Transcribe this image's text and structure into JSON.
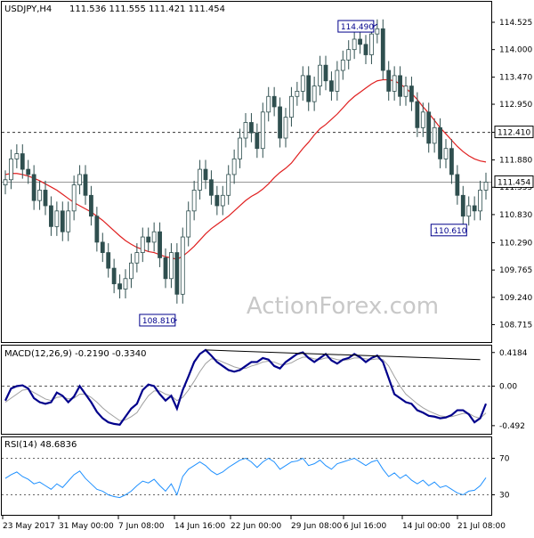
{
  "header": {
    "symbol": "USDJPY,H4",
    "ohlc": "111.536 111.555 111.421 111.454"
  },
  "watermark": "ActionForex.com",
  "colors": {
    "candle": "#2f4f4f",
    "ma": "#e02020",
    "macd": "#00008b",
    "signal": "#a0a0a0",
    "rsi": "#1e90ff",
    "label_border": "#00008b",
    "current_price_bg": "#ffffff"
  },
  "chart_data": [
    {
      "type": "candlestick",
      "panel": "price",
      "ylim": [
        108.45,
        114.85
      ],
      "y_ticks": [
        "114.525",
        "114.000",
        "113.470",
        "112.950",
        "112.410",
        "111.880",
        "111.355",
        "110.830",
        "110.290",
        "109.765",
        "109.240",
        "108.715"
      ],
      "y_tick_values": [
        114.525,
        114.0,
        113.47,
        112.95,
        112.41,
        111.88,
        111.355,
        110.83,
        110.29,
        109.765,
        109.24,
        108.715
      ],
      "x_tick_labels": [
        "23 May 2017",
        "31 May 00:00",
        "7 Jun 08:00",
        "14 Jun 16:00",
        "22 Jun 00:00",
        "29 Jun 08:00",
        "6 Jul 16:00",
        "14 Jul 00:00",
        "21 Jul 08:00"
      ],
      "horizontal_line": {
        "value": 112.41,
        "label": "112.410"
      },
      "current_price": {
        "value": 111.454,
        "label": "111.454"
      },
      "annotations": [
        {
          "label": "114.490",
          "value": 114.49,
          "at_close_index": 65
        },
        {
          "label": "108.810",
          "value": 108.81,
          "at_close_index": 30
        },
        {
          "label": "110.610",
          "value": 110.61,
          "at_close_index": 80
        }
      ],
      "closes": [
        111.5,
        111.9,
        112.0,
        111.7,
        111.6,
        111.1,
        111.3,
        111.0,
        110.6,
        110.9,
        110.5,
        110.9,
        111.4,
        111.6,
        111.2,
        110.8,
        110.3,
        110.1,
        109.8,
        109.5,
        109.4,
        109.6,
        109.9,
        110.1,
        110.4,
        110.3,
        110.5,
        110.0,
        109.6,
        110.1,
        109.3,
        110.4,
        110.9,
        111.3,
        111.7,
        111.5,
        111.2,
        111.0,
        111.2,
        111.6,
        111.9,
        112.3,
        112.6,
        112.4,
        112.1,
        112.8,
        113.1,
        112.9,
        112.3,
        112.7,
        113.1,
        113.2,
        113.5,
        113.0,
        113.3,
        113.7,
        113.4,
        113.2,
        113.6,
        113.8,
        114.0,
        114.2,
        114.1,
        113.9,
        114.3,
        114.4,
        113.6,
        113.2,
        113.5,
        113.1,
        113.3,
        113.0,
        112.5,
        112.8,
        112.2,
        112.5,
        111.9,
        112.1,
        111.6,
        111.2,
        110.8,
        111.0,
        110.9,
        111.3,
        111.454
      ],
      "ma": [
        111.6,
        111.62,
        111.62,
        111.6,
        111.57,
        111.53,
        111.48,
        111.42,
        111.36,
        111.3,
        111.22,
        111.14,
        111.06,
        111.0,
        110.94,
        110.88,
        110.8,
        110.72,
        110.62,
        110.52,
        110.42,
        110.33,
        110.26,
        110.2,
        110.16,
        110.12,
        110.1,
        110.06,
        110.02,
        110.0,
        109.97,
        110.03,
        110.12,
        110.22,
        110.34,
        110.46,
        110.56,
        110.64,
        110.72,
        110.8,
        110.9,
        111.0,
        111.1,
        111.18,
        111.24,
        111.32,
        111.42,
        111.54,
        111.64,
        111.72,
        111.82,
        111.96,
        112.1,
        112.22,
        112.36,
        112.48,
        112.56,
        112.66,
        112.76,
        112.88,
        113.0,
        113.1,
        113.18,
        113.26,
        113.34,
        113.4,
        113.42,
        113.42,
        113.4,
        113.34,
        113.26,
        113.16,
        113.04,
        112.9,
        112.78,
        112.64,
        112.5,
        112.38,
        112.26,
        112.14,
        112.04,
        111.96,
        111.9,
        111.86,
        111.84
      ]
    },
    {
      "type": "line",
      "panel": "macd",
      "name": "MACD(12,26,9)",
      "legend": "MACD(12,26,9) -0.2190 -0.3340",
      "ylim": [
        -0.56,
        0.46
      ],
      "y_ticks": [
        "0.4184",
        "0.00",
        "-0.492"
      ],
      "y_tick_values": [
        0.4184,
        0.0,
        -0.492
      ],
      "macd": [
        -0.18,
        -0.03,
        0.0,
        0.01,
        -0.03,
        -0.15,
        -0.2,
        -0.22,
        -0.2,
        -0.08,
        -0.12,
        -0.2,
        -0.13,
        0.0,
        -0.1,
        -0.2,
        -0.32,
        -0.4,
        -0.45,
        -0.47,
        -0.48,
        -0.38,
        -0.28,
        -0.22,
        -0.05,
        0.02,
        0.0,
        -0.1,
        -0.18,
        -0.12,
        -0.28,
        -0.05,
        0.12,
        0.3,
        0.4,
        0.45,
        0.38,
        0.3,
        0.25,
        0.2,
        0.18,
        0.2,
        0.25,
        0.3,
        0.3,
        0.35,
        0.33,
        0.25,
        0.22,
        0.3,
        0.35,
        0.4,
        0.42,
        0.35,
        0.3,
        0.35,
        0.4,
        0.32,
        0.28,
        0.33,
        0.35,
        0.4,
        0.36,
        0.3,
        0.35,
        0.38,
        0.3,
        0.1,
        -0.1,
        -0.15,
        -0.2,
        -0.22,
        -0.3,
        -0.33,
        -0.37,
        -0.38,
        -0.4,
        -0.39,
        -0.36,
        -0.3,
        -0.3,
        -0.35,
        -0.45,
        -0.4,
        -0.219
      ],
      "signal": [
        -0.2,
        -0.15,
        -0.1,
        -0.05,
        -0.04,
        -0.08,
        -0.12,
        -0.16,
        -0.18,
        -0.14,
        -0.13,
        -0.16,
        -0.15,
        -0.1,
        -0.1,
        -0.14,
        -0.2,
        -0.27,
        -0.33,
        -0.38,
        -0.43,
        -0.42,
        -0.38,
        -0.33,
        -0.22,
        -0.12,
        -0.06,
        -0.06,
        -0.1,
        -0.12,
        -0.18,
        -0.14,
        -0.05,
        0.06,
        0.18,
        0.28,
        0.34,
        0.33,
        0.3,
        0.27,
        0.24,
        0.22,
        0.22,
        0.25,
        0.27,
        0.3,
        0.31,
        0.3,
        0.27,
        0.27,
        0.29,
        0.33,
        0.36,
        0.36,
        0.34,
        0.33,
        0.35,
        0.35,
        0.33,
        0.32,
        0.33,
        0.35,
        0.35,
        0.34,
        0.33,
        0.34,
        0.33,
        0.25,
        0.12,
        0.0,
        -0.1,
        -0.16,
        -0.22,
        -0.27,
        -0.31,
        -0.34,
        -0.37,
        -0.38,
        -0.38,
        -0.36,
        -0.34,
        -0.34,
        -0.38,
        -0.4,
        -0.334
      ],
      "divergence_line": {
        "from_index": 35,
        "from_value": 0.45,
        "to_index": 83,
        "to_value": 0.33
      }
    },
    {
      "type": "line",
      "panel": "rsi",
      "name": "RSI(14)",
      "legend": "RSI(14) 48.6836",
      "ylim": [
        10,
        90
      ],
      "y_ticks": [
        "70",
        "30"
      ],
      "y_tick_values": [
        70,
        30
      ],
      "values": [
        48,
        52,
        55,
        50,
        47,
        42,
        44,
        40,
        36,
        42,
        38,
        45,
        52,
        56,
        48,
        42,
        36,
        34,
        30,
        28,
        27,
        30,
        34,
        40,
        45,
        43,
        47,
        40,
        34,
        42,
        30,
        50,
        58,
        62,
        66,
        62,
        56,
        52,
        55,
        60,
        64,
        68,
        70,
        66,
        60,
        66,
        70,
        66,
        58,
        62,
        66,
        67,
        70,
        62,
        64,
        68,
        62,
        58,
        64,
        66,
        68,
        70,
        66,
        62,
        66,
        68,
        58,
        50,
        54,
        48,
        52,
        46,
        42,
        46,
        40,
        44,
        38,
        40,
        36,
        32,
        30,
        34,
        35,
        40,
        48.68
      ]
    }
  ]
}
